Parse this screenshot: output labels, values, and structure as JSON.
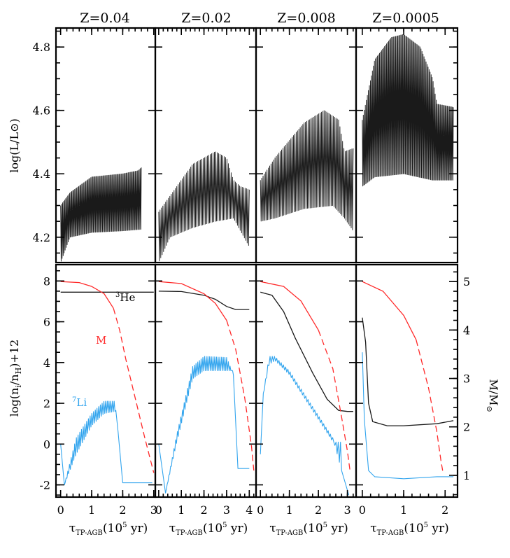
{
  "chart_data": {
    "type": "line",
    "panel_titles": [
      "Z=0.04",
      "Z=0.02",
      "Z=0.008",
      "Z=0.0005"
    ],
    "upper": {
      "ylabel": "log(L/L⊙)",
      "ylim": [
        4.12,
        4.86
      ],
      "yticks": [
        4.2,
        4.4,
        4.6,
        4.8
      ],
      "ytick_labels": [
        "4.2",
        "4.4",
        "4.6",
        "4.8"
      ]
    },
    "lower": {
      "ylabel": "log(n_i/n_H)+12",
      "ylabel_parts": [
        "log(n",
        "i",
        "/n",
        "H",
        ")+12"
      ],
      "ylim": [
        -2.6,
        8.8
      ],
      "yticks": [
        -2,
        0,
        2,
        4,
        6,
        8
      ],
      "ytick_labels": [
        "-2",
        "0",
        "2",
        "4",
        "6",
        "8"
      ],
      "right_ylabel": "M/M⊙",
      "right_ylabel_parts": [
        "M/M",
        "⊙"
      ],
      "right_ylim": [
        0.55,
        5.35
      ],
      "right_yticks": [
        1,
        2,
        3,
        4,
        5
      ],
      "right_ytick_labels": [
        "1",
        "2",
        "3",
        "4",
        "5"
      ]
    },
    "xlabel": "τTP-AGB(10⁵ yr)",
    "xlabel_parts": [
      "τ",
      "TP-AGB",
      "(10",
      "5",
      " yr)"
    ],
    "xlim": [
      -0.12,
      3.05
    ],
    "xticks": [
      0,
      1,
      2,
      3
    ],
    "xlim_panel2": [
      -0.12,
      2.3
    ],
    "xticks_panel2": [
      0,
      1,
      2
    ],
    "panels": [
      {
        "Z": "0.04",
        "xmax": 3.05,
        "xticks": [
          0,
          1,
          2,
          3
        ],
        "xtick_labels": [
          "0",
          "1",
          "2",
          "3"
        ],
        "lum_peak": [
          [
            0,
            4.3
          ],
          [
            0.3,
            4.34
          ],
          [
            1.0,
            4.39
          ],
          [
            2.0,
            4.4
          ],
          [
            2.5,
            4.41
          ],
          [
            2.6,
            4.42
          ]
        ],
        "lum_base": [
          [
            0,
            4.12
          ],
          [
            0.3,
            4.2
          ],
          [
            1.0,
            4.215
          ],
          [
            2.0,
            4.22
          ],
          [
            2.6,
            4.225
          ]
        ],
        "n_pulses": 80,
        "he3": [
          [
            0,
            7.45
          ],
          [
            3.0,
            7.45
          ]
        ],
        "mass": [
          [
            0,
            5.0
          ],
          [
            0.6,
            4.98
          ],
          [
            1.0,
            4.9
          ],
          [
            1.4,
            4.75
          ],
          [
            1.7,
            4.45
          ],
          [
            1.9,
            4.0
          ],
          [
            2.1,
            3.4
          ],
          [
            2.4,
            2.6
          ],
          [
            2.7,
            1.8
          ],
          [
            3.0,
            1.05
          ]
        ],
        "li_peak": [
          [
            0,
            0
          ],
          [
            0.12,
            -2
          ],
          [
            0.5,
            0.3
          ],
          [
            1.0,
            1.5
          ],
          [
            1.4,
            2.1
          ],
          [
            1.75,
            2.1
          ],
          [
            1.85,
            0.6
          ],
          [
            2.0,
            -1.9
          ],
          [
            2.95,
            -1.9
          ]
        ],
        "li_low": [
          [
            0.12,
            -2
          ],
          [
            0.5,
            -0.5
          ],
          [
            1.0,
            0.9
          ],
          [
            1.4,
            1.5
          ],
          [
            1.75,
            1.6
          ]
        ],
        "li_pulse_start": 0.12,
        "li_pulse_end": 1.78,
        "li_n_pulses": 30,
        "label_he3": "3He",
        "label_he3_sup": "3",
        "label_he3_main": "He",
        "label_m": "M",
        "label_li": "7Li",
        "label_li_sup": "7",
        "label_li_main": "Li"
      },
      {
        "Z": "0.02",
        "xmax": 4.3,
        "xticks": [
          0,
          1,
          2,
          3,
          4
        ],
        "xtick_labels": [
          "0",
          "1",
          "2",
          "3",
          "4"
        ],
        "lum_peak": [
          [
            0,
            4.28
          ],
          [
            0.5,
            4.33
          ],
          [
            1.5,
            4.43
          ],
          [
            2.5,
            4.47
          ],
          [
            3.0,
            4.45
          ],
          [
            3.3,
            4.38
          ],
          [
            3.6,
            4.36
          ],
          [
            4.0,
            4.35
          ]
        ],
        "lum_base": [
          [
            0,
            4.12
          ],
          [
            0.5,
            4.2
          ],
          [
            1.5,
            4.23
          ],
          [
            2.5,
            4.25
          ],
          [
            3.3,
            4.26
          ],
          [
            4.0,
            4.17
          ]
        ],
        "n_pulses": 65,
        "he3": [
          [
            0,
            7.5
          ],
          [
            1.0,
            7.48
          ],
          [
            2.0,
            7.3
          ],
          [
            2.5,
            7.1
          ],
          [
            3.0,
            6.75
          ],
          [
            3.4,
            6.6
          ],
          [
            4.0,
            6.6
          ]
        ],
        "mass": [
          [
            0,
            5.0
          ],
          [
            1.0,
            4.96
          ],
          [
            2.0,
            4.75
          ],
          [
            2.5,
            4.55
          ],
          [
            3.0,
            4.2
          ],
          [
            3.4,
            3.6
          ],
          [
            3.8,
            2.6
          ],
          [
            4.1,
            1.6
          ],
          [
            4.2,
            1.1
          ]
        ],
        "li_peak": [
          [
            0,
            0
          ],
          [
            0.3,
            -2.4
          ],
          [
            0.8,
            0.5
          ],
          [
            1.5,
            3.8
          ],
          [
            2.0,
            4.3
          ],
          [
            3.0,
            4.25
          ],
          [
            3.3,
            3.4
          ],
          [
            3.5,
            -1.2
          ],
          [
            4.0,
            -1.2
          ]
        ],
        "li_low": [
          [
            0.3,
            -2.4
          ],
          [
            0.8,
            0.1
          ],
          [
            1.5,
            3.2
          ],
          [
            2.0,
            3.6
          ],
          [
            3.0,
            3.6
          ]
        ],
        "li_pulse_start": 0.3,
        "li_pulse_end": 3.3,
        "li_n_pulses": 40
      },
      {
        "Z": "0.008",
        "xmax": 3.3,
        "xticks": [
          0,
          1,
          2,
          3
        ],
        "xtick_labels": [
          "0",
          "1",
          "2",
          "3"
        ],
        "lum_peak": [
          [
            0,
            4.38
          ],
          [
            0.5,
            4.45
          ],
          [
            1.5,
            4.56
          ],
          [
            2.2,
            4.6
          ],
          [
            2.7,
            4.57
          ],
          [
            2.9,
            4.47
          ],
          [
            3.2,
            4.48
          ]
        ],
        "lum_base": [
          [
            0,
            4.25
          ],
          [
            0.5,
            4.26
          ],
          [
            1.5,
            4.29
          ],
          [
            2.5,
            4.3
          ],
          [
            2.9,
            4.26
          ],
          [
            3.2,
            4.22
          ]
        ],
        "n_pulses": 70,
        "he3": [
          [
            0,
            7.45
          ],
          [
            0.4,
            7.3
          ],
          [
            0.8,
            6.5
          ],
          [
            1.2,
            5.2
          ],
          [
            1.8,
            3.5
          ],
          [
            2.3,
            2.2
          ],
          [
            2.7,
            1.65
          ],
          [
            3.0,
            1.6
          ],
          [
            3.2,
            1.6
          ]
        ],
        "mass": [
          [
            0,
            5.0
          ],
          [
            0.8,
            4.9
          ],
          [
            1.4,
            4.6
          ],
          [
            2.0,
            4.0
          ],
          [
            2.5,
            3.2
          ],
          [
            2.8,
            2.2
          ],
          [
            3.0,
            1.5
          ],
          [
            3.1,
            1.05
          ]
        ],
        "li_peak": [
          [
            0,
            -0.5
          ],
          [
            0.1,
            2.5
          ],
          [
            0.3,
            4.3
          ],
          [
            0.5,
            4.3
          ],
          [
            1.0,
            3.6
          ],
          [
            2.0,
            1.4
          ],
          [
            2.5,
            0.3
          ],
          [
            2.8,
            -1.3
          ],
          [
            3.05,
            -2.5
          ]
        ],
        "li_low": [
          [
            0.1,
            2.4
          ],
          [
            0.3,
            3.9
          ],
          [
            0.5,
            4.1
          ],
          [
            1.0,
            3.4
          ],
          [
            2.0,
            1.2
          ],
          [
            2.5,
            0.1
          ]
        ],
        "li_pulse_start": 0.1,
        "li_pulse_end": 2.8,
        "li_n_pulses": 35
      },
      {
        "Z": "0.0005",
        "xmax": 2.3,
        "xticks": [
          0,
          1,
          2
        ],
        "xtick_labels": [
          "0",
          "1",
          "2"
        ],
        "lum_peak": [
          [
            0,
            4.57
          ],
          [
            0.3,
            4.76
          ],
          [
            0.7,
            4.83
          ],
          [
            1.0,
            4.84
          ],
          [
            1.4,
            4.8
          ],
          [
            1.7,
            4.7
          ],
          [
            1.8,
            4.62
          ],
          [
            2.2,
            4.61
          ]
        ],
        "lum_base": [
          [
            0,
            4.36
          ],
          [
            0.3,
            4.39
          ],
          [
            1.0,
            4.4
          ],
          [
            1.7,
            4.38
          ],
          [
            2.2,
            4.38
          ]
        ],
        "n_pulses": 90,
        "he3": [
          [
            0,
            6.2
          ],
          [
            0.08,
            5.0
          ],
          [
            0.15,
            2.0
          ],
          [
            0.25,
            1.1
          ],
          [
            0.6,
            0.9
          ],
          [
            1.0,
            0.9
          ],
          [
            1.8,
            1.0
          ],
          [
            2.2,
            1.15
          ]
        ],
        "mass": [
          [
            0,
            5.0
          ],
          [
            0.5,
            4.8
          ],
          [
            1.0,
            4.3
          ],
          [
            1.3,
            3.8
          ],
          [
            1.6,
            2.8
          ],
          [
            1.8,
            1.9
          ],
          [
            1.9,
            1.3
          ],
          [
            1.95,
            1.05
          ]
        ],
        "li_peak": [
          [
            0,
            4.5
          ],
          [
            0.05,
            1.2
          ],
          [
            0.15,
            -1.3
          ],
          [
            0.3,
            -1.6
          ],
          [
            1.0,
            -1.7
          ],
          [
            1.8,
            -1.6
          ],
          [
            2.2,
            -1.6
          ]
        ],
        "li_low": [],
        "li_pulse_start": 0,
        "li_pulse_end": 0,
        "li_n_pulses": 0
      }
    ],
    "colors": {
      "luminosity": "#1a1a1a",
      "he3": "#1a1a1a",
      "mass": "#ff2a2a",
      "li": "#33a5ee"
    }
  }
}
